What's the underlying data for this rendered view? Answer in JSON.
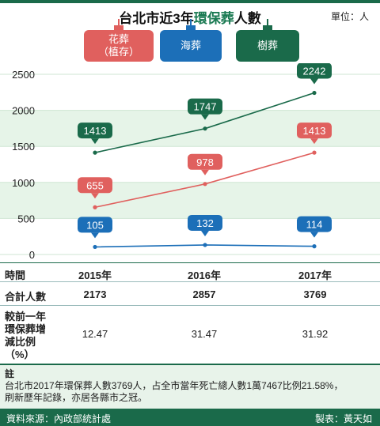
{
  "header": {
    "title_prefix": "台北市近3年",
    "title_highlight": "環保葬",
    "title_suffix": "人數",
    "unit": "單位：人"
  },
  "legend": [
    {
      "label_line1": "花葬",
      "label_line2": "（植存）",
      "color": "#e0605e"
    },
    {
      "label_line1": "海葬",
      "label_line2": "",
      "color": "#1c6fb8"
    },
    {
      "label_line1": "樹葬",
      "label_line2": "",
      "color": "#1a6a4a"
    }
  ],
  "chart_data": {
    "type": "line",
    "categories": [
      "2015年",
      "2016年",
      "2017年"
    ],
    "ylim": [
      0,
      2500
    ],
    "yticks": [
      0,
      500,
      1000,
      1500,
      2000,
      2500
    ],
    "series": [
      {
        "name": "樹葬",
        "color": "#1a6a4a",
        "values": [
          1413,
          1747,
          2242
        ]
      },
      {
        "name": "花葬（植存）",
        "color": "#e0605e",
        "values": [
          655,
          978,
          1413
        ]
      },
      {
        "name": "海葬",
        "color": "#1c6fb8",
        "values": [
          105,
          132,
          114
        ]
      }
    ]
  },
  "table": {
    "header_label": "時間",
    "years": [
      "2015年",
      "2016年",
      "2017年"
    ],
    "total_label": "合計人數",
    "totals": [
      "2173",
      "2857",
      "3769"
    ],
    "growth_label_lines": [
      "較前一年",
      "環保葬增",
      "減比例",
      "（%）"
    ],
    "growth": [
      "12.47",
      "31.47",
      "31.92"
    ]
  },
  "note": {
    "heading": "註",
    "line1": "台北市2017年環保葬人數3769人，占全市當年死亡總人數1萬7467比例21.58%，",
    "line2": "刷新歷年記錄，亦居各縣市之冠。"
  },
  "footer": {
    "source": "資料來源：內政部統計處",
    "maker": "製表：黃天如"
  }
}
